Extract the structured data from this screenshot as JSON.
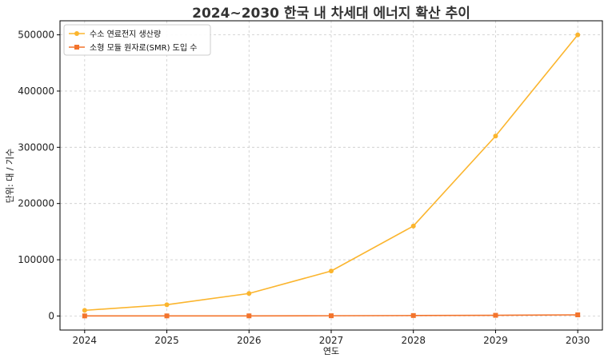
{
  "chart_data": {
    "type": "line",
    "title": "2024~2030 한국 내 차세대 에너지 확산 추이",
    "xlabel": "연도",
    "ylabel": "단위: 대 / 기수",
    "x": [
      2024,
      2025,
      2026,
      2027,
      2028,
      2029,
      2030
    ],
    "xlim": [
      2023.7,
      2030.3
    ],
    "ylim": [
      -25000,
      525000
    ],
    "yticks": [
      0,
      100000,
      200000,
      300000,
      400000,
      500000
    ],
    "grid": true,
    "legend_position": "top-left",
    "series": [
      {
        "name": "수소 연료전지 생산량",
        "color": "#fbb52e",
        "marker": "circle",
        "values": [
          10000,
          20000,
          40000,
          80000,
          160000,
          320000,
          500000
        ]
      },
      {
        "name": "소형 모듈 원자로(SMR) 도입 수",
        "color": "#f3742c",
        "marker": "square",
        "values": [
          100,
          150,
          200,
          400,
          800,
          1200,
          2000
        ]
      }
    ]
  }
}
